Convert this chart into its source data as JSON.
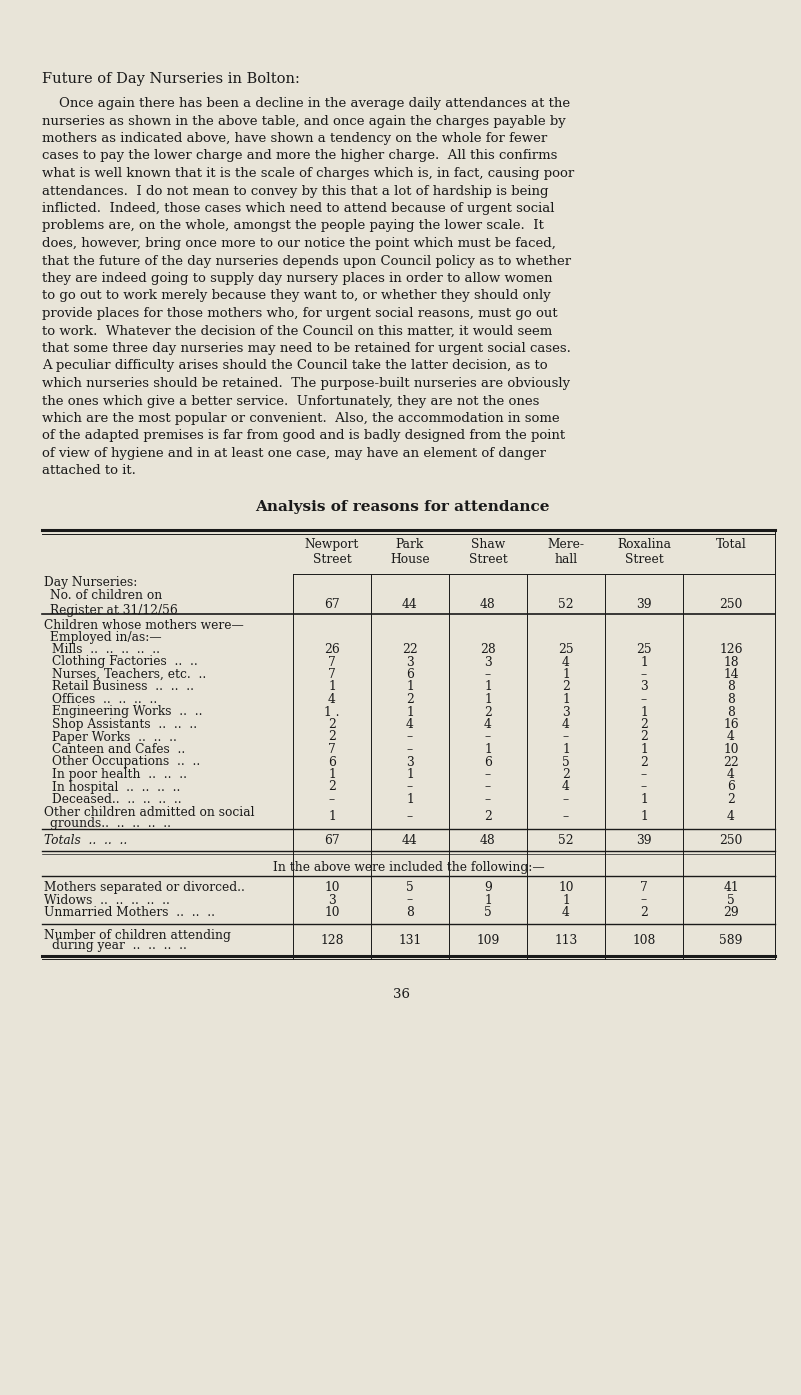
{
  "bg_color": "#e8e4d8",
  "text_color": "#1a1a1a",
  "title": "Future of Day Nurseries in Bolton:",
  "col_headers": [
    "Newport\nStreet",
    "Park\nHouse",
    "Shaw\nStreet",
    "Mere-\nhall",
    "Roxalina\nStreet",
    "Total"
  ],
  "day_nurseries_label": "Day Nurseries:",
  "no_children_values": [
    "67",
    "44",
    "48",
    "52",
    "39",
    "250"
  ],
  "section1_header1": "Children whose mothers were—",
  "section1_header2": "Employed in/as:—",
  "rows_main": [
    [
      "Mills  ..  ..  ..  ..  ..",
      "26",
      "22",
      "28",
      "25",
      "25",
      "126"
    ],
    [
      "Clothing Factories  ..  ..",
      "7",
      "3",
      "3",
      "4",
      "1",
      "18"
    ],
    [
      "Nurses, Teachers, etc.  ..",
      "7",
      "6",
      "–",
      "1",
      "–",
      "14"
    ],
    [
      "Retail Business  ..  ..  ..",
      "1",
      "1",
      "1",
      "2",
      "3",
      "8"
    ],
    [
      "Offices  ..  ..  ..  ..",
      "4",
      "2",
      "1",
      "1",
      "–",
      "8"
    ],
    [
      "Engineering Works  ..  ..",
      "1 .",
      "1",
      "2",
      "3",
      "1",
      "8"
    ],
    [
      "Shop Assistants  ..  ..  ..",
      "2",
      "4",
      "4",
      "4",
      "2",
      "16"
    ],
    [
      "Paper Works  ..  ..  ..",
      "2",
      "–",
      "–",
      "–",
      "2",
      "4"
    ],
    [
      "Canteen and Cafes  ..",
      "7",
      "–",
      "1",
      "1",
      "1",
      "10"
    ],
    [
      "Other Occupations  ..  ..",
      "6",
      "3",
      "6",
      "5",
      "2",
      "22"
    ],
    [
      "In poor health  ..  ..  ..",
      "1",
      "1",
      "–",
      "2",
      "–",
      "4"
    ],
    [
      "In hospital  ..  ..  ..  ..",
      "2",
      "–",
      "–",
      "4",
      "–",
      "6"
    ],
    [
      "Deceased..  ..  ..  ..  ..",
      "–",
      "1",
      "–",
      "–",
      "1",
      "2"
    ],
    [
      "Other children admitted on social\ngrounds..  ..  ..  ..  ..",
      "1",
      "–",
      "2",
      "–",
      "1",
      "4"
    ]
  ],
  "totals_row": [
    "Totals  ..  ..  ..",
    "67",
    "44",
    "48",
    "52",
    "39",
    "250"
  ],
  "included_note": "In the above were included the following:—",
  "rows_included": [
    [
      "Mothers separated or divorced..",
      "10",
      "5",
      "9",
      "10",
      "7",
      "41"
    ],
    [
      "Widows  ..  ..  ..  ..  ..",
      "3",
      "–",
      "1",
      "1",
      "–",
      "5"
    ],
    [
      "Unmarried Mothers  ..  ..  ..",
      "10",
      "8",
      "5",
      "4",
      "2",
      "29"
    ]
  ],
  "attending_label_1": "Number of children attending",
  "attending_label_2": "during year  ..  ..  ..  ..",
  "attending_values": [
    "128",
    "131",
    "109",
    "113",
    "108",
    "589"
  ],
  "page_number": "36",
  "font_size_body": 9.5,
  "font_size_title_heading": 10.5,
  "font_size_table_title": 11.0,
  "font_size_table": 8.8
}
